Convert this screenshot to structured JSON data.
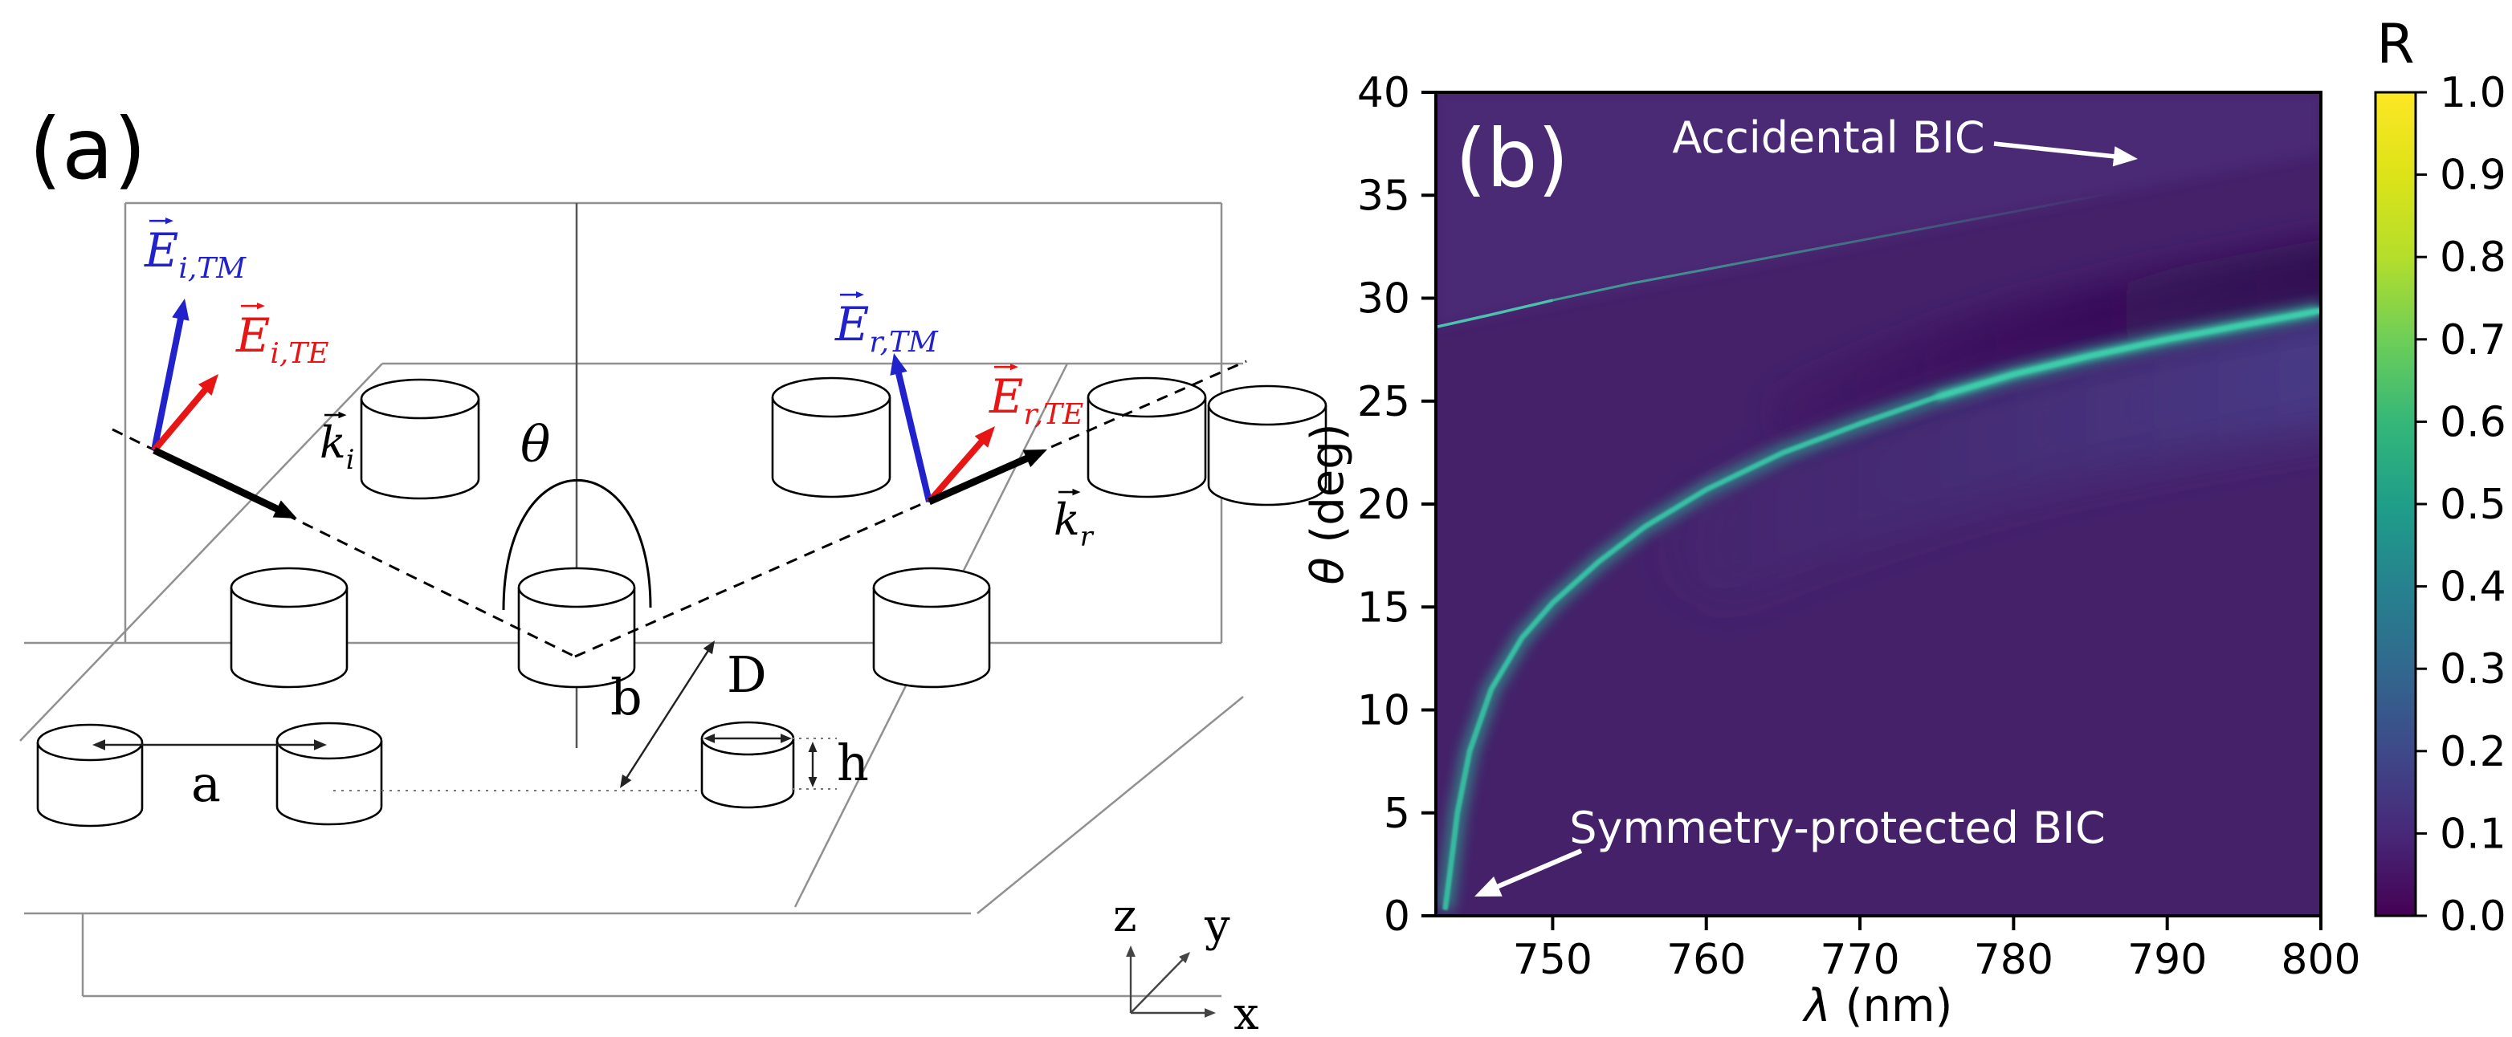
{
  "figure": {
    "panel_a": {
      "label": "(a)",
      "theta_label": "θ",
      "vector_labels": {
        "e_i_tm": {
          "main": "E",
          "sub": "i,TM"
        },
        "e_i_te": {
          "main": "E",
          "sub": "i,TE"
        },
        "k_i": {
          "main": "k",
          "sub": "i"
        },
        "e_r_tm": {
          "main": "E",
          "sub": "r,TM"
        },
        "e_r_te": {
          "main": "E",
          "sub": "r,TE"
        },
        "k_r": {
          "main": "k",
          "sub": "r"
        }
      },
      "dimension_labels": {
        "lattice_a": "a",
        "lattice_b": "b",
        "diameter": "D",
        "height": "h"
      },
      "axis_labels": {
        "x": "x",
        "y": "y",
        "z": "z"
      },
      "colors": {
        "tm_blue": "#2222cc",
        "te_red": "#e81515",
        "wavevector_black": "#000000",
        "plane_gray": "#909090"
      }
    },
    "panel_b": {
      "label": "(b)",
      "annotation_color": "#ffffff"
    }
  },
  "chart_data": {
    "type": "heatmap",
    "title": "",
    "xlabel_symbol": "λ",
    "xlabel_unit": " (nm)",
    "ylabel_symbol": "θ",
    "ylabel_unit": " (deg)",
    "xlim": [
      742.4,
      800
    ],
    "ylim": [
      0,
      40
    ],
    "x_ticks": [
      750,
      760,
      770,
      780,
      790,
      800
    ],
    "y_ticks": [
      0,
      5,
      10,
      15,
      20,
      25,
      30,
      35,
      40
    ],
    "grid": false,
    "colorbar": {
      "label": "R",
      "ticks": [
        "1.0",
        "0.9",
        "0.8",
        "0.7",
        "0.6",
        "0.5",
        "0.4",
        "0.3",
        "0.2",
        "0.1",
        "0.0"
      ],
      "colormap": "viridis",
      "vmin": 0.0,
      "vmax": 1.0
    },
    "background_reflectance": 0.05,
    "series": [
      {
        "name": "TE guided-mode resonance (symmetry-protected BIC at θ = 0)",
        "type": "resonance-band",
        "peak_R": 0.55,
        "points_lambda_theta": [
          [
            743.0,
            0.3
          ],
          [
            743.3,
            2
          ],
          [
            743.8,
            5
          ],
          [
            744.6,
            8
          ],
          [
            746,
            11
          ],
          [
            748,
            13.5
          ],
          [
            750,
            15.2
          ],
          [
            753,
            17.2
          ],
          [
            756,
            18.9
          ],
          [
            760,
            20.7
          ],
          [
            765,
            22.5
          ],
          [
            770,
            23.9
          ],
          [
            775,
            25.2
          ],
          [
            780,
            26.3
          ],
          [
            785,
            27.2
          ],
          [
            790,
            28.0
          ],
          [
            795,
            28.7
          ],
          [
            800,
            29.4
          ]
        ]
      },
      {
        "name": "accidental BIC branch",
        "type": "resonance-band",
        "peak_R": 0.35,
        "fades_at": [
          790.5,
          35.7
        ],
        "points_lambda_theta": [
          [
            742.4,
            28.6
          ],
          [
            746,
            29.2
          ],
          [
            750,
            29.9
          ],
          [
            755,
            30.7
          ],
          [
            760,
            31.4
          ],
          [
            765,
            32.1
          ],
          [
            770,
            32.8
          ],
          [
            775,
            33.5
          ],
          [
            780,
            34.2
          ],
          [
            785,
            34.9
          ],
          [
            790,
            35.6
          ],
          [
            791,
            35.7
          ]
        ]
      }
    ],
    "annotations": [
      {
        "text": "Accidental BIC",
        "target_lambda_theta": [
          788,
          36.5
        ]
      },
      {
        "text": "Symmetry-protected BIC",
        "target_lambda_theta": [
          744.8,
          0.9
        ]
      }
    ]
  }
}
